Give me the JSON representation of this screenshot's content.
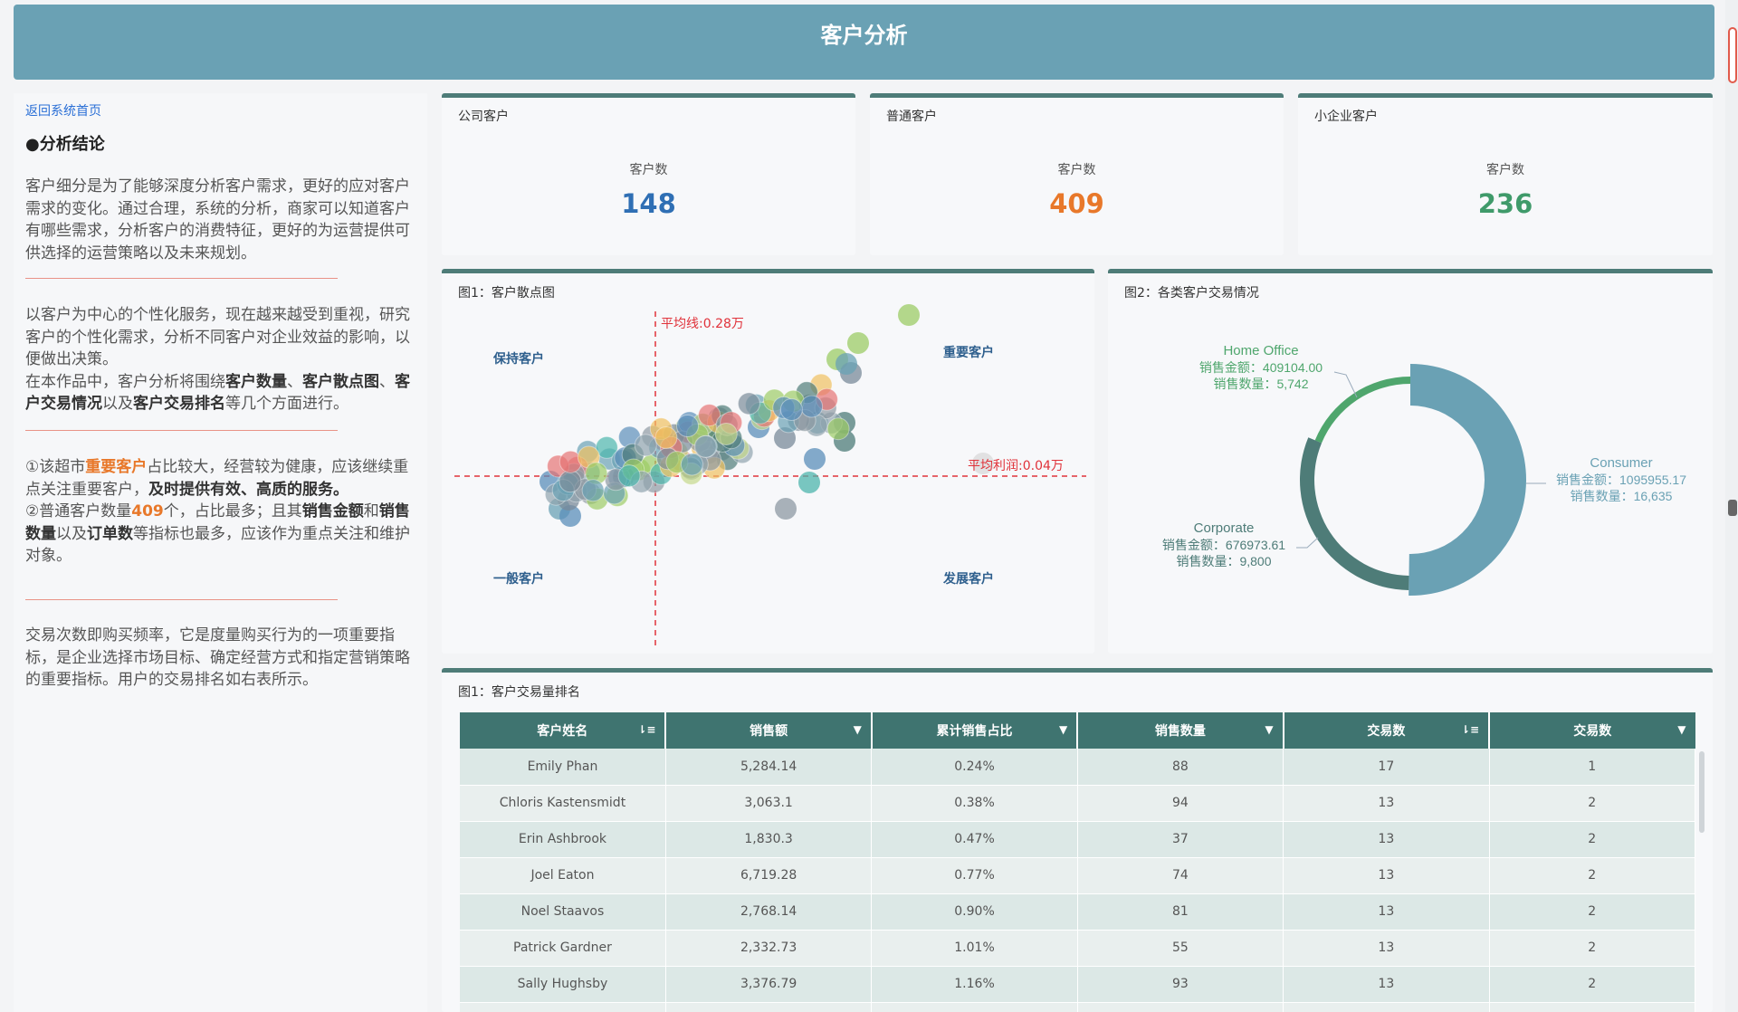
{
  "header": {
    "title": "客户分析"
  },
  "left": {
    "back_link": "返回系统首页",
    "conclusion_title": "●分析结论",
    "p1": "客户细分是为了能够深度分析客户需求，更好的应对客户需求的变化。通过合理，系统的分析，商家可以知道客户有哪些需求，分析客户的消费特征，更好的为运营提供可供选择的运营策略以及未来规划。",
    "p2a": "以客户为中心的个性化服务，现在越来越受到重视，研究客户的个性化需求，分析不同客户对企业效益的影响，以便做出决策。",
    "p2b_1": "在本作品中，客户分析将围绕",
    "p2b_2": "客户数量",
    "p2b_3": "、",
    "p2b_4": "客户散点图",
    "p2b_5": "、",
    "p2b_6": "客户交易情况",
    "p2b_7": "以及",
    "p2b_8": "客户交易排名",
    "p2b_9": "等几个方面进行。",
    "p3_1": "①该超市",
    "p3_2": "重要客户",
    "p3_3": "占比较大，经营较为健康，应该继续重点关注重要客户，",
    "p3_4": "及时提供有效、高质的服务。",
    "p3_5": "②普通客户数量",
    "p3_6": "409",
    "p3_7": "个，占比最多；且其",
    "p3_8": "销售金额",
    "p3_9": "和",
    "p3_10": "销售数量",
    "p3_11": "以及",
    "p3_12": "订单数",
    "p3_13": "等指标也最多，应该作为重点关注和维护对象。",
    "p4": "交易次数即购买频率，它是度量购买行为的一项重要指标，是企业选择市场目标、确定经营方式和指定营销策略的重要指标。用户的交易排名如右表所示。"
  },
  "cards": [
    {
      "title": "公司客户",
      "label": "客户数",
      "value": "148",
      "color": "#2f6fb4"
    },
    {
      "title": "普通客户",
      "label": "客户数",
      "value": "409",
      "color": "#e8782a"
    },
    {
      "title": "小企业客户",
      "label": "客户数",
      "value": "236",
      "color": "#3f9a6a"
    }
  ],
  "scatter": {
    "title": "图1：客户散点图",
    "avg_line_label": "平均线:0.28万",
    "avg_profit_label": "平均利润:0.04万",
    "quadrants": [
      "保持客户",
      "重要客户",
      "一般客户",
      "发展客户"
    ]
  },
  "donut": {
    "title": "图2：各类客户交易情况",
    "amount_label": "销售金额：",
    "qty_label": "销售数量：",
    "segments": [
      {
        "name": "Consumer",
        "amount": "1095955.17",
        "qty": "16,635",
        "value": 1095955.17,
        "color": "#6aa1b4"
      },
      {
        "name": "Corporate",
        "amount": "676973.61",
        "qty": "9,800",
        "value": 676973.61,
        "color": "#4e7c78"
      },
      {
        "name": "Home Office",
        "amount": "409104.00",
        "qty": "5,742",
        "value": 409104.0,
        "color": "#4fa66d"
      }
    ]
  },
  "ranking": {
    "title": "图1：客户交易量排名",
    "columns": [
      {
        "label": "客户姓名",
        "sort": "⇂≡"
      },
      {
        "label": "销售额",
        "sort": "▼"
      },
      {
        "label": "累计销售占比",
        "sort": "▼"
      },
      {
        "label": "销售数量",
        "sort": "▼"
      },
      {
        "label": "交易数",
        "sort": "⇂≡"
      },
      {
        "label": "交易数",
        "sort": "▼"
      }
    ],
    "rows": [
      [
        "Emily Phan",
        "5,284.14",
        "0.24%",
        "88",
        "17",
        "1"
      ],
      [
        "Chloris Kastensmidt",
        "3,063.1",
        "0.38%",
        "94",
        "13",
        "2"
      ],
      [
        "Erin Ashbrook",
        "1,830.3",
        "0.47%",
        "37",
        "13",
        "2"
      ],
      [
        "Joel Eaton",
        "6,719.28",
        "0.77%",
        "74",
        "13",
        "2"
      ],
      [
        "Noel Staavos",
        "2,768.14",
        "0.90%",
        "81",
        "13",
        "2"
      ],
      [
        "Patrick Gardner",
        "2,332.73",
        "1.01%",
        "55",
        "13",
        "2"
      ],
      [
        "Sally Hughsby",
        "3,376.79",
        "1.16%",
        "93",
        "13",
        "2"
      ],
      [
        "",
        "",
        "",
        "",
        "",
        ""
      ]
    ]
  }
}
